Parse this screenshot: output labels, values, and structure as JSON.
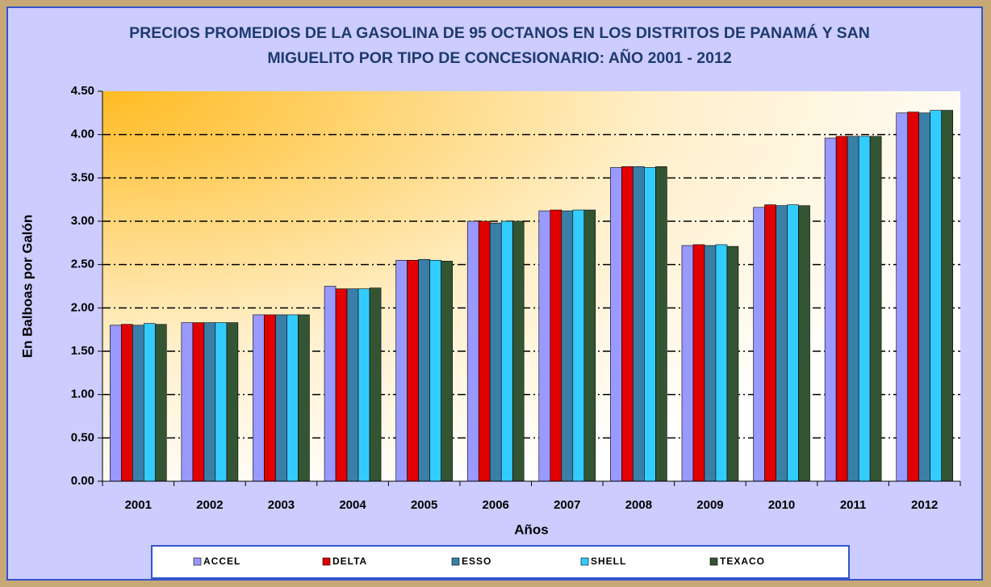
{
  "chart_data": {
    "type": "bar",
    "title": "PRECIOS PROMEDIOS DE LA GASOLINA DE 95 OCTANOS EN LOS DISTRITOS DE PANAMÁ Y SAN MIGUELITO POR TIPO DE CONCESIONARIO: AÑO 2001 - 2012",
    "x_label": "Años",
    "y_label": "En Balboas por Galón",
    "categories": [
      "2001",
      "2002",
      "2003",
      "2004",
      "2005",
      "2006",
      "2007",
      "2008",
      "2009",
      "2010",
      "2011",
      "2012"
    ],
    "series": [
      {
        "name": "ACCEL",
        "color": "#9999ff",
        "values": [
          1.8,
          1.83,
          1.92,
          2.25,
          2.55,
          3.0,
          3.12,
          3.62,
          2.72,
          3.16,
          3.96,
          4.25
        ]
      },
      {
        "name": "DELTA",
        "color": "#e00000",
        "values": [
          1.81,
          1.83,
          1.92,
          2.22,
          2.55,
          3.0,
          3.13,
          3.63,
          2.73,
          3.19,
          3.98,
          4.26
        ]
      },
      {
        "name": "ESSO",
        "color": "#3a7fa8",
        "values": [
          1.8,
          1.83,
          1.92,
          2.22,
          2.56,
          2.98,
          3.12,
          3.63,
          2.72,
          3.18,
          3.98,
          4.25
        ]
      },
      {
        "name": "SHELL",
        "color": "#33ccff",
        "values": [
          1.82,
          1.83,
          1.92,
          2.22,
          2.55,
          3.0,
          3.13,
          3.62,
          2.73,
          3.19,
          3.98,
          4.28
        ]
      },
      {
        "name": "TEXACO",
        "color": "#335533",
        "values": [
          1.81,
          1.83,
          1.92,
          2.23,
          2.54,
          3.0,
          3.13,
          3.63,
          2.71,
          3.18,
          3.98,
          4.28
        ]
      }
    ],
    "ylim": [
      0,
      4.5
    ],
    "yticks": [
      {
        "value": 0,
        "label": "0.00"
      },
      {
        "value": 0.5,
        "label": "0.50"
      },
      {
        "value": 1,
        "label": "1.00"
      },
      {
        "value": 1.5,
        "label": "1.50"
      },
      {
        "value": 2,
        "label": "2.00"
      },
      {
        "value": 2.5,
        "label": "2.50"
      },
      {
        "value": 3,
        "label": "3.00"
      },
      {
        "value": 3.5,
        "label": "3.50"
      },
      {
        "value": 4,
        "label": "4.00"
      },
      {
        "value": 4.5,
        "label": "4.50"
      }
    ],
    "grid": true,
    "legend": "bottom"
  }
}
